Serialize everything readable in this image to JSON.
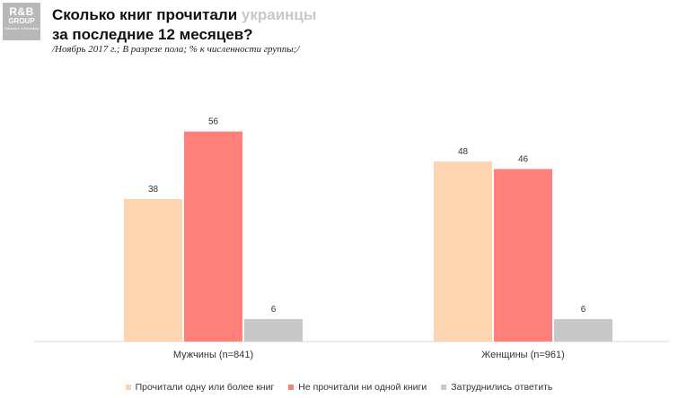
{
  "logo": {
    "line1": "R&B",
    "line2": "GROUP",
    "line3": "Research & Branding"
  },
  "title": {
    "part1": "Сколько книг прочитали ",
    "accent": "украинцы",
    "line2": "за последние 12 месяцев?"
  },
  "subtitle": "/Ноябрь 2017 г.; В разрезе пола; % к численности группы;/",
  "colors": {
    "accent_title": "#c8c8c8"
  },
  "chart_data": {
    "type": "bar",
    "categories": [
      "Мужчины (n=841)",
      "Женщины (n=961)"
    ],
    "series": [
      {
        "name": "Прочитали одну или более книг",
        "values": [
          38,
          48
        ],
        "color": "#fdd5b1"
      },
      {
        "name": "Не прочитали ни одной книги",
        "values": [
          56,
          46
        ],
        "color": "#ff7f7a"
      },
      {
        "name": "Затруднились ответить",
        "values": [
          6,
          6
        ],
        "color": "#c8c8c8"
      }
    ],
    "data_labels": true,
    "legend": "bottom",
    "grid": false,
    "ylim": [
      0,
      60
    ]
  }
}
